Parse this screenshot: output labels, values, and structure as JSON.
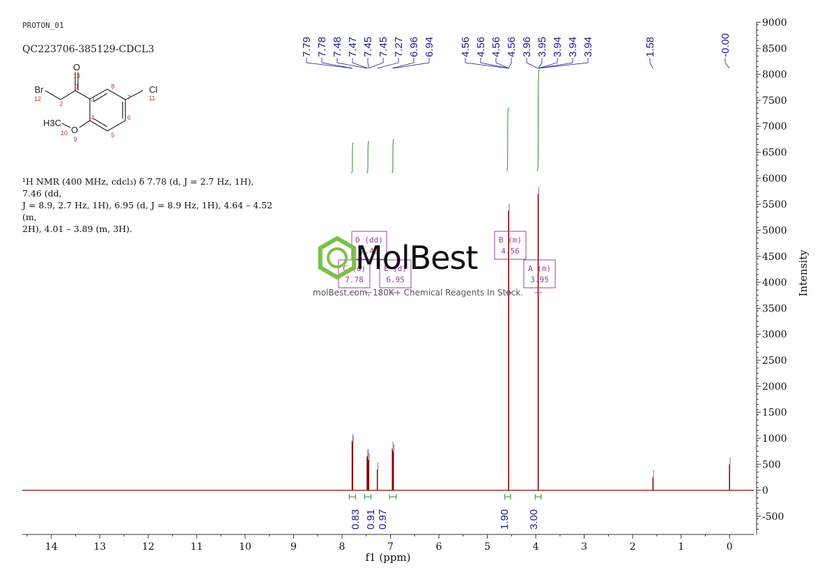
{
  "header": {
    "experiment": "PROTON_01",
    "sample": "QC223706-385129-CDCL3"
  },
  "structure": {
    "atoms": [
      {
        "symbol": "O",
        "number": "13"
      },
      {
        "symbol": "Br",
        "number": "12"
      },
      {
        "symbol": "Cl",
        "number": "11"
      },
      {
        "symbol": "O",
        "number": "9"
      },
      {
        "symbol": "H3C",
        "number": "10"
      }
    ],
    "atom_numbers": [
      "1",
      "2",
      "3",
      "4",
      "5",
      "6",
      "7",
      "8"
    ]
  },
  "description": {
    "line1": "¹H NMR (400 MHz, cdcl₃) δ 7.78 (d, J = 2.7 Hz, 1H), 7.46 (dd,",
    "line2": "J = 8.9, 2.7 Hz, 1H), 6.95 (d, J = 8.9 Hz, 1H), 4.64 – 4.52 (m,",
    "line3": "2H), 4.01 – 3.89 (m, 3H)."
  },
  "watermark": {
    "brand": "MolBest",
    "tagline": "molBest.com, 180K+ Chemical Reagents In Stock."
  },
  "colors": {
    "spectrum": "#8b0000",
    "peak_labels": "#1a1a8c",
    "integrals": "#2e8b2e",
    "multiplet_boxes": "#9b3fa3",
    "axis": "#333333",
    "watermark_logo": "#7bc144"
  },
  "chart_data": {
    "type": "line",
    "xlabel": "f1 (ppm)",
    "ylabel": "Intensity",
    "xlim": [
      14.6,
      -0.5
    ],
    "ylim": [
      -850,
      9000
    ],
    "x_ticks": [
      "14",
      "13",
      "12",
      "11",
      "10",
      "9",
      "8",
      "7",
      "6",
      "5",
      "4",
      "3",
      "2",
      "1",
      "0"
    ],
    "y_ticks": [
      "9000",
      "8500",
      "8000",
      "7500",
      "7000",
      "6500",
      "6000",
      "5500",
      "5000",
      "4500",
      "4000",
      "3500",
      "3000",
      "2500",
      "2000",
      "1500",
      "1000",
      "500",
      "0",
      "-500"
    ],
    "peaks": [
      {
        "ppm": 7.79,
        "intensity": 950
      },
      {
        "ppm": 7.78,
        "intensity": 900
      },
      {
        "ppm": 7.48,
        "intensity": 640
      },
      {
        "ppm": 7.47,
        "intensity": 660
      },
      {
        "ppm": 7.45,
        "intensity": 580
      },
      {
        "ppm": 7.45,
        "intensity": 560
      },
      {
        "ppm": 7.27,
        "intensity": 400
      },
      {
        "ppm": 6.96,
        "intensity": 800
      },
      {
        "ppm": 6.94,
        "intensity": 750
      },
      {
        "ppm": 4.56,
        "intensity": 5380
      },
      {
        "ppm": 3.95,
        "intensity": 5700
      },
      {
        "ppm": 1.58,
        "intensity": 250
      },
      {
        "ppm": 0.0,
        "intensity": 500
      }
    ],
    "peak_label_groups": [
      {
        "labels": [
          "7.79",
          "7.78",
          "7.48",
          "7.47",
          "7.45",
          "7.45",
          "7.27",
          "6.96",
          "6.94"
        ],
        "ppms": [
          7.79,
          7.78,
          7.48,
          7.47,
          7.45,
          7.45,
          7.27,
          6.96,
          6.94
        ]
      },
      {
        "labels": [
          "4.56",
          "4.56",
          "4.56",
          "4.56",
          "3.96",
          "3.95",
          "3.94",
          "3.94",
          "3.94"
        ],
        "ppms": [
          4.56,
          4.56,
          4.56,
          4.56,
          3.96,
          3.95,
          3.94,
          3.94,
          3.94
        ]
      },
      {
        "labels": [
          "1.58"
        ],
        "ppms": [
          1.58
        ]
      },
      {
        "labels": [
          "-0.00"
        ],
        "ppms": [
          0.0
        ]
      }
    ],
    "integrals": [
      {
        "from": 7.85,
        "to": 7.72,
        "value": "0.83"
      },
      {
        "from": 7.53,
        "to": 7.4,
        "value": "0.91"
      },
      {
        "from": 7.02,
        "to": 6.88,
        "value": "0.97"
      },
      {
        "from": 4.64,
        "to": 4.52,
        "value": "1.90"
      },
      {
        "from": 4.01,
        "to": 3.89,
        "value": "3.00"
      }
    ],
    "multiplets": [
      {
        "id": "C",
        "type": "(d)",
        "shift": "7.78"
      },
      {
        "id": "D",
        "type": "(dd)",
        "shift": "7.46"
      },
      {
        "id": "E",
        "type": "(d)",
        "shift": "6.95"
      },
      {
        "id": "B",
        "type": "(m)",
        "shift": "4.56"
      },
      {
        "id": "A",
        "type": "(m)",
        "shift": "3.95"
      }
    ]
  }
}
